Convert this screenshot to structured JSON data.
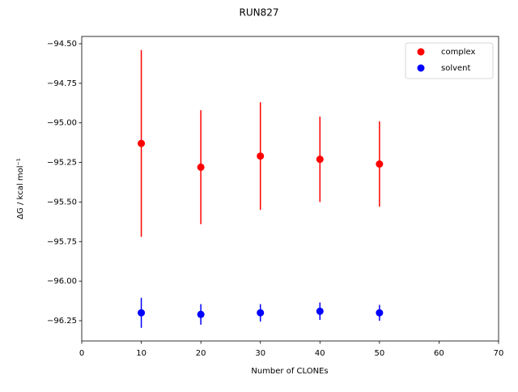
{
  "chart_data": {
    "type": "scatter",
    "title": "RUN827",
    "x_label": "Number of CLONEs",
    "y_label": "ΔG / kcal mol⁻¹",
    "x": [
      10,
      20,
      30,
      40,
      50
    ],
    "series": [
      {
        "name": "complex",
        "color": "#ff0000",
        "values": [
          -95.13,
          -95.28,
          -95.21,
          -95.23,
          -95.26
        ],
        "errors": [
          0.59,
          0.36,
          0.34,
          0.27,
          0.27
        ]
      },
      {
        "name": "solvent",
        "color": "#0000ff",
        "values": [
          -96.2,
          -96.21,
          -96.2,
          -96.19,
          -96.2
        ],
        "errors": [
          0.095,
          0.065,
          0.055,
          0.055,
          0.05
        ]
      }
    ],
    "xlim": [
      0,
      70
    ],
    "xticks": [
      0,
      10,
      20,
      30,
      40,
      50,
      60,
      70
    ],
    "ylim": [
      -96.378,
      -94.454
    ],
    "yticks": [
      {
        "value": -94.5,
        "label": "−94.50"
      },
      {
        "value": -94.75,
        "label": "−94.75"
      },
      {
        "value": -95.0,
        "label": "−95.00"
      },
      {
        "value": -95.25,
        "label": "−95.25"
      },
      {
        "value": -95.5,
        "label": "−95.50"
      },
      {
        "value": -95.75,
        "label": "−95.75"
      },
      {
        "value": -96.0,
        "label": "−96.00"
      },
      {
        "value": -96.25,
        "label": "−96.25"
      }
    ],
    "legend": "upper right",
    "grid": false
  }
}
